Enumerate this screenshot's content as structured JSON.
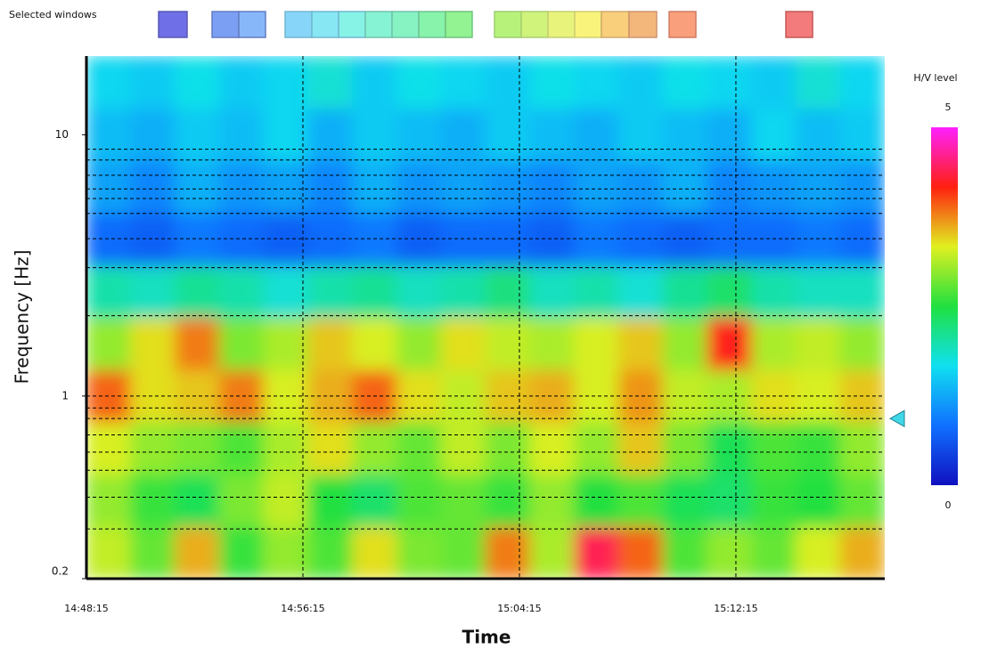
{
  "chart_data": {
    "type": "heatmap",
    "legend_title": "Selected windows",
    "xlabel": "Time",
    "ylabel": "Frequency [Hz]",
    "colorbar_title": "H/V level",
    "xlim": [
      53295,
      55065
    ],
    "xticks": [
      {
        "value": 53295,
        "label": "14:48:15"
      },
      {
        "value": 53775,
        "label": "14:56:15"
      },
      {
        "value": 54255,
        "label": "15:04:15"
      },
      {
        "value": 54735,
        "label": "15:12:15"
      }
    ],
    "ylim": [
      0.2,
      20
    ],
    "log_y": true,
    "yticks": [
      0.2,
      1,
      10
    ],
    "grid": true,
    "clim": [
      0,
      5
    ],
    "cticks": [
      0,
      5
    ],
    "colorscale": [
      "#1010c0",
      "#1070ff",
      "#10e0f0",
      "#20e040",
      "#e0f020",
      "#ff2010",
      "#ff20ff"
    ],
    "peak_frequencies": [
      8.8,
      8.0,
      7.0,
      6.2,
      5.7,
      5.0,
      4.0,
      3.1,
      2.03,
      1.0,
      0.9,
      0.82,
      0.71,
      0.61,
      0.52,
      0.41,
      0.31
    ],
    "marker_frequency": 0.82,
    "z": [
      [
        3.2,
        2.8,
        3.6,
        2.6,
        3.0,
        2.7,
        3.4,
        2.9,
        2.8,
        3.8,
        3.1,
        4.4,
        3.9,
        2.7,
        3.0,
        2.8,
        3.3,
        3.6
      ],
      [
        3.0,
        2.6,
        2.4,
        2.9,
        3.2,
        2.5,
        2.3,
        2.7,
        2.8,
        2.6,
        3.0,
        2.5,
        2.7,
        2.4,
        2.3,
        2.6,
        2.5,
        2.8
      ],
      [
        3.3,
        3.0,
        2.9,
        2.7,
        3.1,
        3.4,
        3.0,
        2.8,
        3.2,
        2.9,
        3.3,
        3.0,
        3.5,
        2.9,
        2.4,
        2.7,
        2.6,
        3.0
      ],
      [
        3.9,
        3.4,
        3.5,
        3.8,
        3.3,
        3.6,
        3.9,
        3.4,
        3.2,
        3.5,
        3.6,
        3.3,
        3.7,
        3.2,
        3.1,
        3.4,
        3.3,
        3.5
      ],
      [
        3.0,
        3.4,
        3.8,
        2.9,
        3.1,
        3.5,
        3.3,
        3.0,
        3.4,
        3.2,
        3.1,
        3.3,
        3.5,
        3.0,
        4.2,
        3.1,
        3.2,
        3.0
      ],
      [
        2.0,
        1.9,
        2.1,
        2.0,
        1.8,
        2.0,
        2.1,
        1.9,
        2.0,
        2.2,
        1.9,
        2.0,
        1.8,
        2.1,
        2.3,
        2.0,
        1.9,
        1.9
      ],
      [
        0.8,
        0.7,
        0.9,
        0.8,
        0.7,
        0.8,
        0.9,
        0.7,
        0.8,
        0.8,
        0.7,
        0.9,
        0.8,
        0.7,
        0.8,
        0.8,
        0.9,
        0.8
      ],
      [
        1.2,
        1.0,
        1.3,
        1.1,
        1.2,
        1.0,
        1.3,
        1.1,
        1.2,
        1.1,
        1.0,
        1.2,
        1.1,
        1.3,
        1.0,
        1.1,
        1.2,
        1.1
      ],
      [
        1.4,
        1.3,
        1.5,
        1.4,
        1.6,
        1.3,
        1.5,
        1.4,
        1.3,
        1.5,
        1.4,
        1.3,
        1.5,
        1.4,
        1.3,
        1.6,
        1.4,
        1.5
      ],
      [
        1.6,
        1.5,
        1.7,
        1.5,
        1.6,
        1.8,
        1.5,
        1.7,
        1.6,
        1.5,
        1.7,
        1.6,
        1.5,
        1.7,
        1.6,
        1.5,
        1.8,
        1.6
      ]
    ]
  }
}
